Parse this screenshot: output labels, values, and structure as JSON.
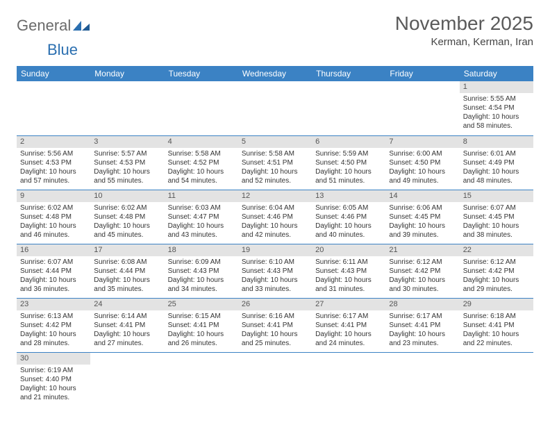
{
  "logo": {
    "word1": "General",
    "word2": "Blue"
  },
  "title": "November 2025",
  "location": "Kerman, Kerman, Iran",
  "colors": {
    "header_bg": "#3b82c4",
    "header_text": "#ffffff",
    "daynum_bg": "#e3e3e3",
    "row_border": "#3b82c4",
    "logo_gray": "#6a6a6a",
    "logo_blue": "#2b6fb0"
  },
  "weekdays": [
    "Sunday",
    "Monday",
    "Tuesday",
    "Wednesday",
    "Thursday",
    "Friday",
    "Saturday"
  ],
  "weeks": [
    [
      null,
      null,
      null,
      null,
      null,
      null,
      {
        "n": "1",
        "sunrise": "5:55 AM",
        "sunset": "4:54 PM",
        "dlh": "10",
        "dlm": "58"
      }
    ],
    [
      {
        "n": "2",
        "sunrise": "5:56 AM",
        "sunset": "4:53 PM",
        "dlh": "10",
        "dlm": "57"
      },
      {
        "n": "3",
        "sunrise": "5:57 AM",
        "sunset": "4:53 PM",
        "dlh": "10",
        "dlm": "55"
      },
      {
        "n": "4",
        "sunrise": "5:58 AM",
        "sunset": "4:52 PM",
        "dlh": "10",
        "dlm": "54"
      },
      {
        "n": "5",
        "sunrise": "5:58 AM",
        "sunset": "4:51 PM",
        "dlh": "10",
        "dlm": "52"
      },
      {
        "n": "6",
        "sunrise": "5:59 AM",
        "sunset": "4:50 PM",
        "dlh": "10",
        "dlm": "51"
      },
      {
        "n": "7",
        "sunrise": "6:00 AM",
        "sunset": "4:50 PM",
        "dlh": "10",
        "dlm": "49"
      },
      {
        "n": "8",
        "sunrise": "6:01 AM",
        "sunset": "4:49 PM",
        "dlh": "10",
        "dlm": "48"
      }
    ],
    [
      {
        "n": "9",
        "sunrise": "6:02 AM",
        "sunset": "4:48 PM",
        "dlh": "10",
        "dlm": "46"
      },
      {
        "n": "10",
        "sunrise": "6:02 AM",
        "sunset": "4:48 PM",
        "dlh": "10",
        "dlm": "45"
      },
      {
        "n": "11",
        "sunrise": "6:03 AM",
        "sunset": "4:47 PM",
        "dlh": "10",
        "dlm": "43"
      },
      {
        "n": "12",
        "sunrise": "6:04 AM",
        "sunset": "4:46 PM",
        "dlh": "10",
        "dlm": "42"
      },
      {
        "n": "13",
        "sunrise": "6:05 AM",
        "sunset": "4:46 PM",
        "dlh": "10",
        "dlm": "40"
      },
      {
        "n": "14",
        "sunrise": "6:06 AM",
        "sunset": "4:45 PM",
        "dlh": "10",
        "dlm": "39"
      },
      {
        "n": "15",
        "sunrise": "6:07 AM",
        "sunset": "4:45 PM",
        "dlh": "10",
        "dlm": "38"
      }
    ],
    [
      {
        "n": "16",
        "sunrise": "6:07 AM",
        "sunset": "4:44 PM",
        "dlh": "10",
        "dlm": "36"
      },
      {
        "n": "17",
        "sunrise": "6:08 AM",
        "sunset": "4:44 PM",
        "dlh": "10",
        "dlm": "35"
      },
      {
        "n": "18",
        "sunrise": "6:09 AM",
        "sunset": "4:43 PM",
        "dlh": "10",
        "dlm": "34"
      },
      {
        "n": "19",
        "sunrise": "6:10 AM",
        "sunset": "4:43 PM",
        "dlh": "10",
        "dlm": "33"
      },
      {
        "n": "20",
        "sunrise": "6:11 AM",
        "sunset": "4:43 PM",
        "dlh": "10",
        "dlm": "31"
      },
      {
        "n": "21",
        "sunrise": "6:12 AM",
        "sunset": "4:42 PM",
        "dlh": "10",
        "dlm": "30"
      },
      {
        "n": "22",
        "sunrise": "6:12 AM",
        "sunset": "4:42 PM",
        "dlh": "10",
        "dlm": "29"
      }
    ],
    [
      {
        "n": "23",
        "sunrise": "6:13 AM",
        "sunset": "4:42 PM",
        "dlh": "10",
        "dlm": "28"
      },
      {
        "n": "24",
        "sunrise": "6:14 AM",
        "sunset": "4:41 PM",
        "dlh": "10",
        "dlm": "27"
      },
      {
        "n": "25",
        "sunrise": "6:15 AM",
        "sunset": "4:41 PM",
        "dlh": "10",
        "dlm": "26"
      },
      {
        "n": "26",
        "sunrise": "6:16 AM",
        "sunset": "4:41 PM",
        "dlh": "10",
        "dlm": "25"
      },
      {
        "n": "27",
        "sunrise": "6:17 AM",
        "sunset": "4:41 PM",
        "dlh": "10",
        "dlm": "24"
      },
      {
        "n": "28",
        "sunrise": "6:17 AM",
        "sunset": "4:41 PM",
        "dlh": "10",
        "dlm": "23"
      },
      {
        "n": "29",
        "sunrise": "6:18 AM",
        "sunset": "4:41 PM",
        "dlh": "10",
        "dlm": "22"
      }
    ],
    [
      {
        "n": "30",
        "sunrise": "6:19 AM",
        "sunset": "4:40 PM",
        "dlh": "10",
        "dlm": "21"
      },
      null,
      null,
      null,
      null,
      null,
      null
    ]
  ],
  "labels": {
    "sunrise": "Sunrise:",
    "sunset": "Sunset:",
    "daylight": "Daylight:",
    "hours": "hours",
    "and": "and",
    "minutes": "minutes."
  }
}
